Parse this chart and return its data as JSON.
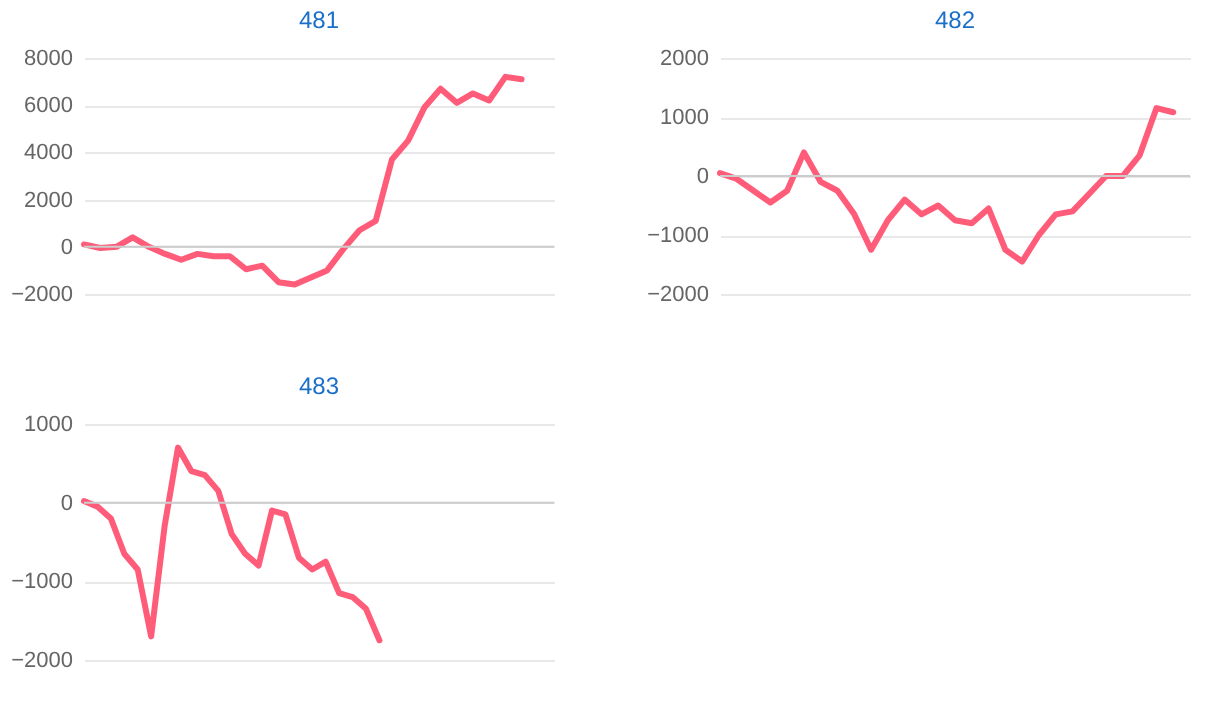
{
  "chart_data": [
    {
      "type": "line",
      "title": "481",
      "tick_labels": "y",
      "grid": "y",
      "marker": "none",
      "line_style": "solid",
      "categories": [
        null,
        null,
        null,
        null,
        null,
        null,
        null,
        null,
        null,
        null,
        null,
        null,
        null,
        null,
        null,
        null,
        null,
        null,
        null,
        null,
        null,
        null,
        null,
        null,
        null,
        null,
        null,
        null,
        null,
        null
      ],
      "series": [
        {
          "color": "#ff5c7a",
          "values": [
            100,
            -50,
            0,
            400,
            0,
            -300,
            -550,
            -300,
            -400,
            -400,
            -950,
            -800,
            -1500,
            -1600,
            -1300,
            -1000,
            -100,
            700,
            1100,
            3700,
            4500,
            5900,
            6700,
            6100,
            6500,
            6200,
            7200,
            7100,
            null,
            null
          ]
        }
      ],
      "ylim": [
        -2000,
        8000
      ],
      "yticks": [
        -2000,
        0,
        2000,
        4000,
        6000,
        8000
      ]
    },
    {
      "type": "line",
      "title": "482",
      "tick_labels": "y",
      "grid": "y",
      "marker": "none",
      "line_style": "solid",
      "categories": [
        null,
        null,
        null,
        null,
        null,
        null,
        null,
        null,
        null,
        null,
        null,
        null,
        null,
        null,
        null,
        null,
        null,
        null,
        null,
        null,
        null,
        null,
        null,
        null,
        null,
        null,
        null,
        null,
        null
      ],
      "series": [
        {
          "color": "#ff5c7a",
          "values": [
            50,
            -50,
            -250,
            -450,
            -250,
            400,
            -100,
            -250,
            -650,
            -1250,
            -750,
            -400,
            -650,
            -500,
            -750,
            -800,
            -550,
            -1250,
            -1450,
            -1000,
            -650,
            -600,
            -300,
            0,
            0,
            350,
            1150,
            1080,
            null
          ]
        }
      ],
      "ylim": [
        -2000,
        2000
      ],
      "yticks": [
        -2000,
        -1000,
        0,
        1000,
        2000
      ]
    },
    {
      "type": "line",
      "title": "483",
      "tick_labels": "y",
      "grid": "y",
      "marker": "none",
      "line_style": "solid",
      "categories": [
        null,
        null,
        null,
        null,
        null,
        null,
        null,
        null,
        null,
        null,
        null,
        null,
        null,
        null,
        null,
        null,
        null,
        null,
        null,
        null,
        null,
        null,
        null,
        null,
        null,
        null,
        null,
        null,
        null,
        null,
        null,
        null,
        null,
        null,
        null,
        null
      ],
      "series": [
        {
          "color": "#ff5c7a",
          "values": [
            20,
            -50,
            -200,
            -650,
            -850,
            -1700,
            -300,
            700,
            400,
            350,
            150,
            -400,
            -650,
            -800,
            -100,
            -150,
            -700,
            -850,
            -750,
            -1150,
            -1200,
            -1350,
            -1750,
            null,
            null,
            null,
            null,
            null,
            null,
            null,
            null,
            null,
            null,
            null,
            null,
            null
          ]
        }
      ],
      "ylim": [
        -2000,
        1000
      ],
      "yticks": [
        -2000,
        -1000,
        0,
        1000
      ]
    }
  ]
}
